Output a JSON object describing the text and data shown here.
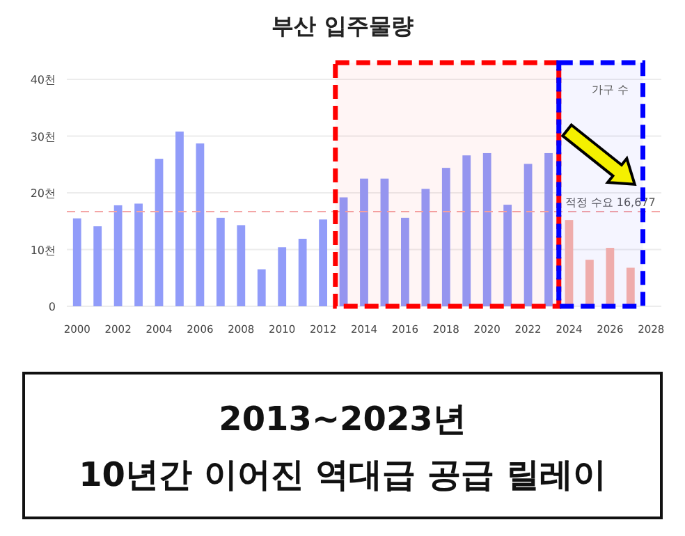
{
  "chart_data": {
    "type": "bar",
    "title": "부산 입주물량",
    "x": [
      2000,
      2001,
      2002,
      2003,
      2004,
      2005,
      2006,
      2007,
      2008,
      2009,
      2010,
      2011,
      2012,
      2013,
      2014,
      2015,
      2016,
      2017,
      2018,
      2019,
      2020,
      2021,
      2022,
      2023,
      2024,
      2025,
      2026,
      2027
    ],
    "values": [
      15.5,
      14.1,
      17.8,
      18.1,
      26.0,
      30.8,
      28.7,
      15.6,
      14.3,
      6.5,
      10.4,
      11.9,
      15.3,
      19.2,
      22.5,
      22.5,
      15.6,
      20.7,
      24.4,
      26.6,
      27.0,
      17.9,
      25.1,
      27.0,
      15.2,
      8.2,
      10.3,
      6.8
    ],
    "colors": [
      "#919cf9",
      "#919cf9",
      "#919cf9",
      "#919cf9",
      "#919cf9",
      "#919cf9",
      "#919cf9",
      "#919cf9",
      "#919cf9",
      "#919cf9",
      "#919cf9",
      "#919cf9",
      "#919cf9",
      "#919cf9",
      "#919cf9",
      "#919cf9",
      "#919cf9",
      "#919cf9",
      "#919cf9",
      "#919cf9",
      "#919cf9",
      "#919cf9",
      "#919cf9",
      "#919cf9",
      "#f9b4a8",
      "#f9b4a8",
      "#f9b4a8",
      "#f9b4a8"
    ],
    "xlim": [
      1999.5,
      2028.5
    ],
    "xticks": [
      2000,
      2002,
      2004,
      2006,
      2008,
      2010,
      2012,
      2014,
      2016,
      2018,
      2020,
      2022,
      2024,
      2026,
      2028
    ],
    "ylim": [
      0,
      40
    ],
    "yticks": [
      0,
      {
        "value": 10,
        "label": "10천"
      },
      {
        "value": 20,
        "label": "20천"
      },
      {
        "value": 30,
        "label": "30천"
      },
      {
        "value": 40,
        "label": "40천"
      }
    ],
    "grid": "y",
    "bands": [
      {
        "axis": "x",
        "from": 2012.6,
        "to": 2023.5,
        "color": "#ff0000"
      },
      {
        "axis": "x",
        "from": 2023.5,
        "to": 2027.6,
        "color": "#0000ff"
      }
    ],
    "ref_lines": [
      {
        "axis": "y",
        "value": 16.677,
        "label": "적정 수요 16,677",
        "color": "#f4a6a6",
        "line_style": "dashed"
      }
    ],
    "annotations": [
      "가구 수",
      "2013~2023년\n10년간 이어진 역대급 공급 릴레이"
    ]
  }
}
